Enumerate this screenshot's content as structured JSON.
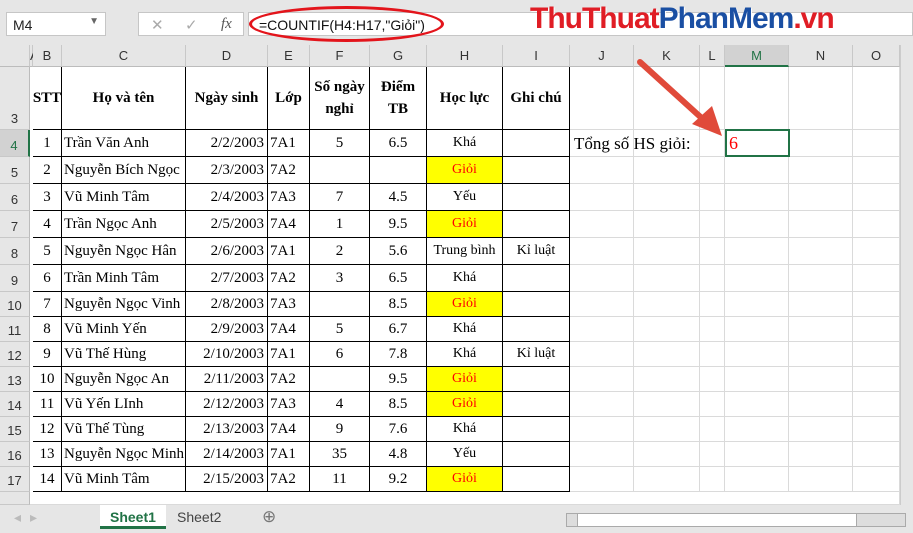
{
  "formula_bar": {
    "name_box": "M4",
    "formula": "=COUNTIF(H4:H17,\"Giỏi\")",
    "cancel_icon": "✕",
    "enter_icon": "✓",
    "fx_icon": "fx"
  },
  "watermark": {
    "part1": "ThuThuat",
    "part2": "PhanMem",
    "part3": ".vn"
  },
  "columns": [
    "A",
    "B",
    "C",
    "D",
    "E",
    "F",
    "G",
    "H",
    "I",
    "J",
    "K",
    "L",
    "M",
    "N",
    "O"
  ],
  "header_row": {
    "row": "3",
    "stt": "STT",
    "name": "Họ và tên",
    "dob": "Ngày sinh",
    "class": "Lớp",
    "absent": "Số ngày nghỉ",
    "score": "Điểm TB",
    "grade": "Học lực",
    "note": "Ghi chú"
  },
  "rows": [
    {
      "row": "4",
      "stt": "1",
      "name": "Trần Văn Anh",
      "dob": "2/2/2003",
      "class": "7A1",
      "absent": "5",
      "score": "6.5",
      "grade": "Khá",
      "note": ""
    },
    {
      "row": "5",
      "stt": "2",
      "name": "Nguyễn Bích Ngọc",
      "dob": "2/3/2003",
      "class": "7A2",
      "absent": "",
      "score": "",
      "grade": "Giỏi",
      "note": ""
    },
    {
      "row": "6",
      "stt": "3",
      "name": "Vũ Minh Tâm",
      "dob": "2/4/2003",
      "class": "7A3",
      "absent": "7",
      "score": "4.5",
      "grade": "Yếu",
      "note": ""
    },
    {
      "row": "7",
      "stt": "4",
      "name": "Trần Ngọc Anh",
      "dob": "2/5/2003",
      "class": "7A4",
      "absent": "1",
      "score": "9.5",
      "grade": "Giỏi",
      "note": ""
    },
    {
      "row": "8",
      "stt": "5",
      "name": "Nguyễn Ngọc Hân",
      "dob": "2/6/2003",
      "class": "7A1",
      "absent": "2",
      "score": "5.6",
      "grade": "Trung bình",
      "note": "Kỉ luật"
    },
    {
      "row": "9",
      "stt": "6",
      "name": "Trần Minh Tâm",
      "dob": "2/7/2003",
      "class": "7A2",
      "absent": "3",
      "score": "6.5",
      "grade": "Khá",
      "note": ""
    },
    {
      "row": "10",
      "stt": "7",
      "name": "Nguyễn Ngọc Vinh",
      "dob": "2/8/2003",
      "class": "7A3",
      "absent": "",
      "score": "8.5",
      "grade": "Giỏi",
      "note": ""
    },
    {
      "row": "11",
      "stt": "8",
      "name": "Vũ Minh Yến",
      "dob": "2/9/2003",
      "class": "7A4",
      "absent": "5",
      "score": "6.7",
      "grade": "Khá",
      "note": ""
    },
    {
      "row": "12",
      "stt": "9",
      "name": "Vũ Thế Hùng",
      "dob": "2/10/2003",
      "class": "7A1",
      "absent": "6",
      "score": "7.8",
      "grade": "Khá",
      "note": "Kỉ luật"
    },
    {
      "row": "13",
      "stt": "10",
      "name": "Nguyễn Ngọc An",
      "dob": "2/11/2003",
      "class": "7A2",
      "absent": "",
      "score": "9.5",
      "grade": "Giỏi",
      "note": ""
    },
    {
      "row": "14",
      "stt": "11",
      "name": "Vũ  Yến LInh",
      "dob": "2/12/2003",
      "class": "7A3",
      "absent": "4",
      "score": "8.5",
      "grade": "Giỏi",
      "note": ""
    },
    {
      "row": "15",
      "stt": "12",
      "name": "Vũ Thế Tùng",
      "dob": "2/13/2003",
      "class": "7A4",
      "absent": "9",
      "score": "7.6",
      "grade": "Khá",
      "note": ""
    },
    {
      "row": "16",
      "stt": "13",
      "name": "Nguyễn Ngọc Minh",
      "dob": "2/14/2003",
      "class": "7A1",
      "absent": "35",
      "score": "4.8",
      "grade": "Yếu",
      "note": ""
    },
    {
      "row": "17",
      "stt": "14",
      "name": "Vũ Minh Tâm",
      "dob": "2/15/2003",
      "class": "7A2",
      "absent": "11",
      "score": "9.2",
      "grade": "Giỏi",
      "note": ""
    }
  ],
  "summary": {
    "label": "Tổng số HS giỏi:",
    "value": "6"
  },
  "highlight": {
    "gioi_fill": "#ffff00",
    "gioi_text": "#ff0000",
    "annotation": "#e3141b",
    "accent": "#217346"
  },
  "sheet_tabs": [
    {
      "label": "Sheet1",
      "active": true
    },
    {
      "label": "Sheet2",
      "active": false
    }
  ],
  "add_sheet_icon": "⊕"
}
